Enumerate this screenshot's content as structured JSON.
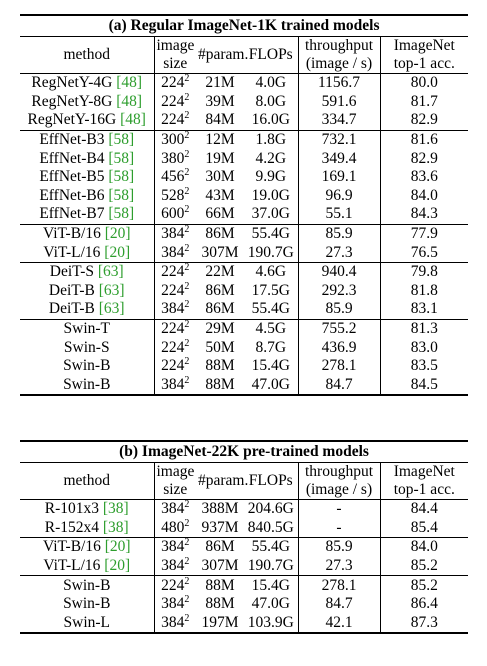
{
  "table_a": {
    "caption": "(a) Regular ImageNet-1K trained models",
    "headers": {
      "method": "method",
      "image_top": "image",
      "image_bottom": "size",
      "params": "#param.",
      "flops": "FLOPs",
      "throughput_top": "throughput",
      "throughput_bottom": "(image / s)",
      "acc_top": "ImageNet",
      "acc_bottom": "top-1 acc."
    },
    "rows": [
      {
        "method": "RegNetY-4G",
        "cite": "[48]",
        "res": "224",
        "exp": "2",
        "params": "21M",
        "flops": "4.0G",
        "throughput": "1156.7",
        "acc": "80.0",
        "group_start": true
      },
      {
        "method": "RegNetY-8G",
        "cite": "[48]",
        "res": "224",
        "exp": "2",
        "params": "39M",
        "flops": "8.0G",
        "throughput": "591.6",
        "acc": "81.7"
      },
      {
        "method": "RegNetY-16G",
        "cite": "[48]",
        "res": "224",
        "exp": "2",
        "params": "84M",
        "flops": "16.0G",
        "throughput": "334.7",
        "acc": "82.9"
      },
      {
        "method": "EffNet-B3",
        "cite": "[58]",
        "res": "300",
        "exp": "2",
        "params": "12M",
        "flops": "1.8G",
        "throughput": "732.1",
        "acc": "81.6",
        "group_start": true
      },
      {
        "method": "EffNet-B4",
        "cite": "[58]",
        "res": "380",
        "exp": "2",
        "params": "19M",
        "flops": "4.2G",
        "throughput": "349.4",
        "acc": "82.9"
      },
      {
        "method": "EffNet-B5",
        "cite": "[58]",
        "res": "456",
        "exp": "2",
        "params": "30M",
        "flops": "9.9G",
        "throughput": "169.1",
        "acc": "83.6"
      },
      {
        "method": "EffNet-B6",
        "cite": "[58]",
        "res": "528",
        "exp": "2",
        "params": "43M",
        "flops": "19.0G",
        "throughput": "96.9",
        "acc": "84.0"
      },
      {
        "method": "EffNet-B7",
        "cite": "[58]",
        "res": "600",
        "exp": "2",
        "params": "66M",
        "flops": "37.0G",
        "throughput": "55.1",
        "acc": "84.3"
      },
      {
        "method": "ViT-B/16",
        "cite": "[20]",
        "res": "384",
        "exp": "2",
        "params": "86M",
        "flops": "55.4G",
        "throughput": "85.9",
        "acc": "77.9",
        "group_start": true
      },
      {
        "method": "ViT-L/16",
        "cite": "[20]",
        "res": "384",
        "exp": "2",
        "params": "307M",
        "flops": "190.7G",
        "throughput": "27.3",
        "acc": "76.5"
      },
      {
        "method": "DeiT-S",
        "cite": "[63]",
        "res": "224",
        "exp": "2",
        "params": "22M",
        "flops": "4.6G",
        "throughput": "940.4",
        "acc": "79.8",
        "group_start": true
      },
      {
        "method": "DeiT-B",
        "cite": "[63]",
        "res": "224",
        "exp": "2",
        "params": "86M",
        "flops": "17.5G",
        "throughput": "292.3",
        "acc": "81.8"
      },
      {
        "method": "DeiT-B",
        "cite": "[63]",
        "res": "384",
        "exp": "2",
        "params": "86M",
        "flops": "55.4G",
        "throughput": "85.9",
        "acc": "83.1"
      },
      {
        "method": "Swin-T",
        "cite": "",
        "res": "224",
        "exp": "2",
        "params": "29M",
        "flops": "4.5G",
        "throughput": "755.2",
        "acc": "81.3",
        "group_start": true
      },
      {
        "method": "Swin-S",
        "cite": "",
        "res": "224",
        "exp": "2",
        "params": "50M",
        "flops": "8.7G",
        "throughput": "436.9",
        "acc": "83.0"
      },
      {
        "method": "Swin-B",
        "cite": "",
        "res": "224",
        "exp": "2",
        "params": "88M",
        "flops": "15.4G",
        "throughput": "278.1",
        "acc": "83.5"
      },
      {
        "method": "Swin-B",
        "cite": "",
        "res": "384",
        "exp": "2",
        "params": "88M",
        "flops": "47.0G",
        "throughput": "84.7",
        "acc": "84.5"
      }
    ]
  },
  "table_b": {
    "caption": "(b) ImageNet-22K pre-trained models",
    "headers": {
      "method": "method",
      "image_top": "image",
      "image_bottom": "size",
      "params": "#param.",
      "flops": "FLOPs",
      "throughput_top": "throughput",
      "throughput_bottom": "(image / s)",
      "acc_top": "ImageNet",
      "acc_bottom": "top-1 acc."
    },
    "rows": [
      {
        "method": "R-101x3",
        "cite": "[38]",
        "res": "384",
        "exp": "2",
        "params": "388M",
        "flops": "204.6G",
        "throughput": "-",
        "acc": "84.4",
        "group_start": true
      },
      {
        "method": "R-152x4",
        "cite": "[38]",
        "res": "480",
        "exp": "2",
        "params": "937M",
        "flops": "840.5G",
        "throughput": "-",
        "acc": "85.4"
      },
      {
        "method": "ViT-B/16",
        "cite": "[20]",
        "res": "384",
        "exp": "2",
        "params": "86M",
        "flops": "55.4G",
        "throughput": "85.9",
        "acc": "84.0",
        "group_start": true
      },
      {
        "method": "ViT-L/16",
        "cite": "[20]",
        "res": "384",
        "exp": "2",
        "params": "307M",
        "flops": "190.7G",
        "throughput": "27.3",
        "acc": "85.2"
      },
      {
        "method": "Swin-B",
        "cite": "",
        "res": "224",
        "exp": "2",
        "params": "88M",
        "flops": "15.4G",
        "throughput": "278.1",
        "acc": "85.2",
        "group_start": true
      },
      {
        "method": "Swin-B",
        "cite": "",
        "res": "384",
        "exp": "2",
        "params": "88M",
        "flops": "47.0G",
        "throughput": "84.7",
        "acc": "86.4"
      },
      {
        "method": "Swin-L",
        "cite": "",
        "res": "384",
        "exp": "2",
        "params": "197M",
        "flops": "103.9G",
        "throughput": "42.1",
        "acc": "87.3"
      }
    ]
  }
}
